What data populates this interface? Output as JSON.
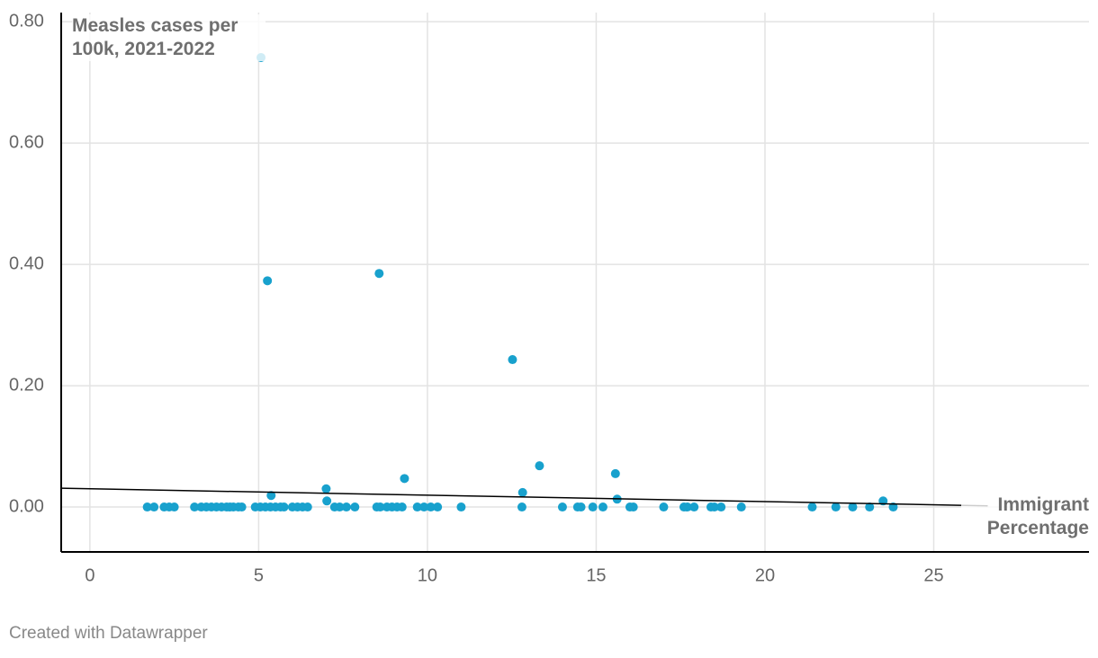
{
  "chart_data": {
    "type": "scatter",
    "y_label": "Measles cases per 100k, 2021-2022",
    "x_label": "Immigrant Percentage",
    "footer": "Created with Datawrapper",
    "color": "#18a1cd",
    "x": [
      1.7,
      1.9,
      2.2,
      2.35,
      2.5,
      3.1,
      3.3,
      3.45,
      3.6,
      3.75,
      3.9,
      4.05,
      4.15,
      4.25,
      4.4,
      4.5,
      4.9,
      5.05,
      5.2,
      5.35,
      5.5,
      5.65,
      5.75,
      6.0,
      6.15,
      6.3,
      6.45,
      7.25,
      7.4,
      7.6,
      7.85,
      8.5,
      8.6,
      8.8,
      8.95,
      9.1,
      9.25,
      9.7,
      9.9,
      10.1,
      10.3,
      11.0,
      12.8,
      14.0,
      14.45,
      14.55,
      14.9,
      15.2,
      16.0,
      16.1,
      17.0,
      17.6,
      17.7,
      17.9,
      18.4,
      18.5,
      18.7,
      19.3,
      21.4,
      22.1,
      22.6,
      23.1,
      23.8,
      5.07,
      5.26,
      8.57,
      12.52,
      13.32,
      15.57,
      15.62,
      9.32,
      7.0,
      7.02,
      5.37,
      12.82,
      23.5
    ],
    "values": [
      0,
      0,
      0,
      0,
      0,
      0,
      0,
      0,
      0,
      0,
      0,
      0,
      0,
      0,
      0,
      0,
      0,
      0,
      0,
      0,
      0,
      0,
      0,
      0,
      0,
      0,
      0,
      0,
      0,
      0,
      0,
      0,
      0,
      0,
      0,
      0,
      0,
      0,
      0,
      0,
      0,
      0,
      0,
      0,
      0,
      0,
      0,
      0,
      0,
      0,
      0,
      0,
      0,
      0,
      0,
      0,
      0,
      0,
      0,
      0,
      0,
      0,
      0,
      0.741,
      0.373,
      0.385,
      0.243,
      0.068,
      0.055,
      0.013,
      0.047,
      0.03,
      0.01,
      0.019,
      0.024,
      0.01
    ],
    "trendline": {
      "x": [
        -0.85,
        26.6
      ],
      "values": [
        0.031,
        0.002
      ],
      "color": "#000000"
    },
    "xlim": [
      -0.85,
      29.6
    ],
    "ylim": [
      -0.074,
      0.815
    ],
    "xticks": [
      0,
      5,
      10,
      15,
      20,
      25
    ],
    "yticks": [
      {
        "value": 0,
        "label": "0.00"
      },
      {
        "value": 0.2,
        "label": "0.20"
      },
      {
        "value": 0.4,
        "label": "0.40"
      },
      {
        "value": 0.6,
        "label": "0.60"
      },
      {
        "value": 0.8,
        "label": "0.80"
      }
    ],
    "grid": true
  }
}
